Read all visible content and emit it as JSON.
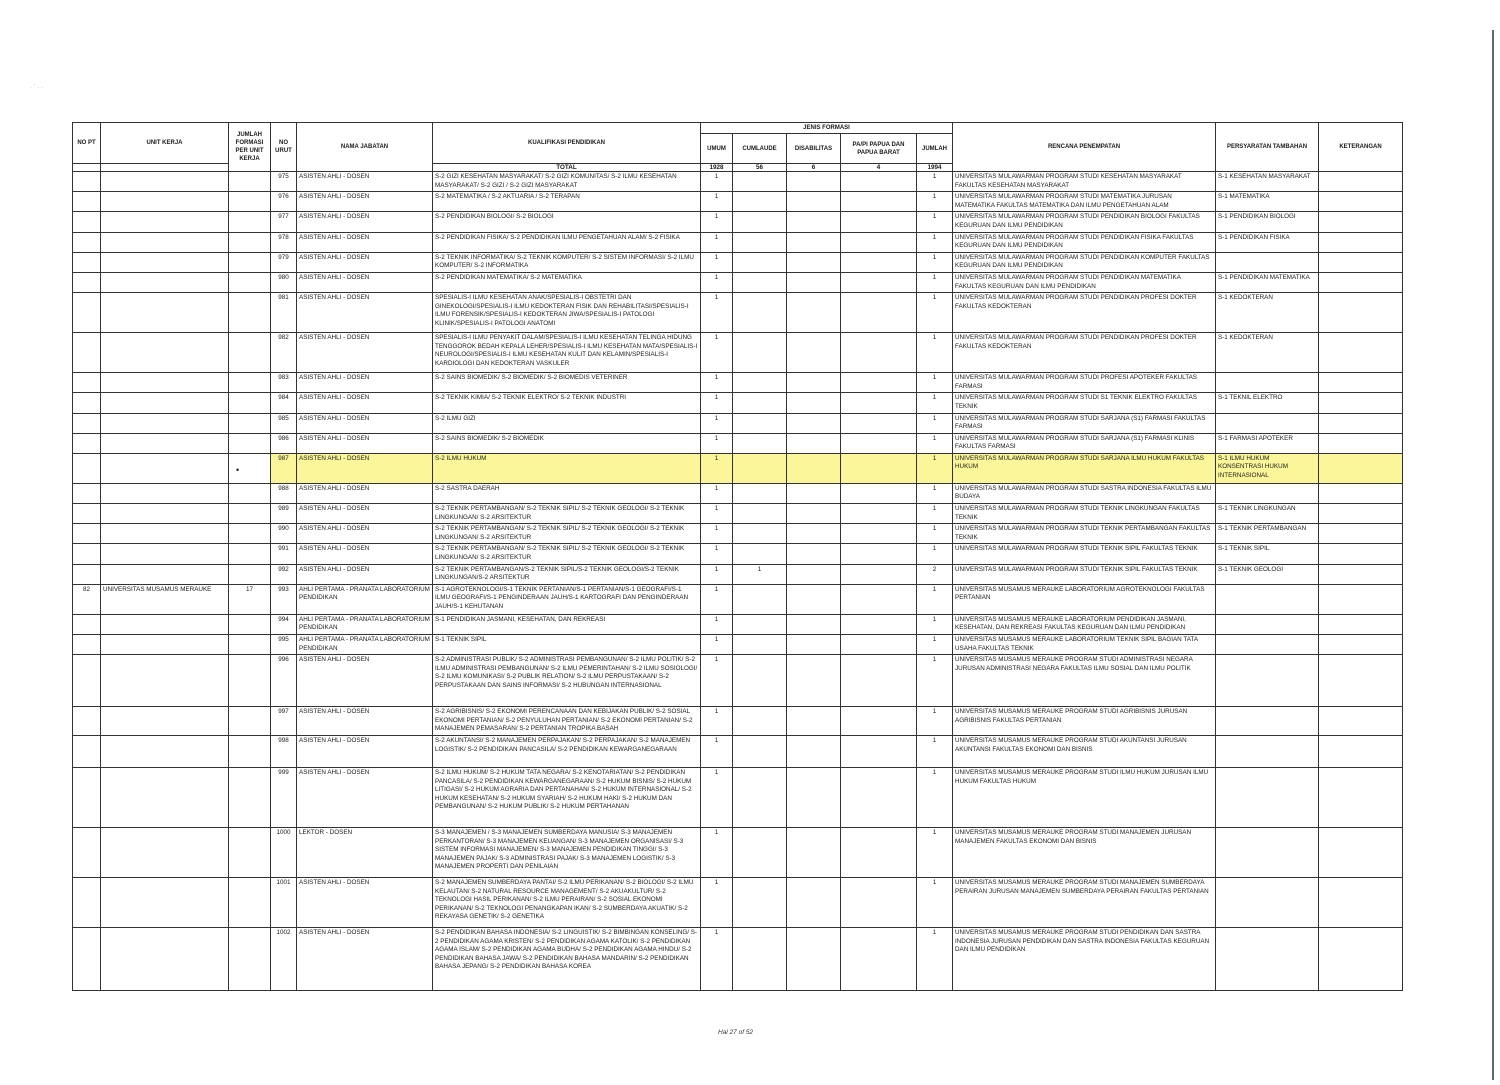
{
  "header": {
    "no_pt": "NO PT",
    "unit_kerja": "UNIT KERJA",
    "jumlah_formasi": "JUMLAH FORMASI PER UNIT KERJA",
    "no_urut": "NO URUT",
    "nama_jabatan": "NAMA JABATAN",
    "kualifikasi": "KUALIFIKASI PENDIDIKAN",
    "jenis_formasi": "JENIS FORMASI",
    "umum": "UMUM",
    "cumlaude": "CUMLAUDE",
    "disabilitas": "DISABILITAS",
    "papua": "PA/PI PAPUA DAN PAPUA BARAT",
    "jumlah": "JUMLAH",
    "rencana": "RENCANA PENEMPATAN",
    "persyaratan": "PERSYARATAN TAMBAHAN",
    "keterangan": "KETERANGAN"
  },
  "totals": {
    "label": "TOTAL",
    "umum": "1928",
    "cumlaude": "56",
    "disabilitas": "6",
    "papua": "4",
    "jumlah": "1994"
  },
  "highlight_color": "#fbf69a",
  "rows": [
    {
      "no_pt": "",
      "unit": "",
      "jf": "",
      "no": "975",
      "jabatan": "ASISTEN AHLI - DOSEN",
      "kualifikasi": "S-2 GIZI KESEHATAN MASYARAKAT/ S-2 GIZI KOMUNITAS/ S-2 ILMU KESEHATAN MASYARAKAT/ S-2 GIZI / S-2 GIZI MASYARAKAT",
      "umum": "1",
      "cum": "",
      "dis": "",
      "pap": "",
      "jml": "1",
      "rencana": "UNIVERSITAS MULAWARMAN PROGRAM STUDI KESEHATAN MASYARAKAT FAKULTAS KESEHATAN MASYARAKAT",
      "syarat": "S-1 KESEHATAN MASYARAKAT",
      "ket": ""
    },
    {
      "no_pt": "",
      "unit": "",
      "jf": "",
      "no": "976",
      "jabatan": "ASISTEN AHLI - DOSEN",
      "kualifikasi": "S-2 MATEMATIKA / S-2 AKTUARIA / S-2 TERAPAN",
      "umum": "1",
      "cum": "",
      "dis": "",
      "pap": "",
      "jml": "1",
      "rencana": "UNIVERSITAS MULAWARMAN PROGRAM STUDI MATEMATIKA JURUSAN MATEMATIKA FAKULTAS MATEMATIKA DAN ILMU PENGETAHUAN ALAM",
      "syarat": "S-1 MATEMATIKA",
      "ket": ""
    },
    {
      "no_pt": "",
      "unit": "",
      "jf": "",
      "no": "977",
      "jabatan": "ASISTEN AHLI - DOSEN",
      "kualifikasi": "S-2 PENDIDIKAN BIOLOGI/ S-2 BIOLOGI",
      "umum": "1",
      "cum": "",
      "dis": "",
      "pap": "",
      "jml": "1",
      "rencana": "UNIVERSITAS MULAWARMAN PROGRAM STUDI PENDIDIKAN BIOLOGI FAKULTAS KEGURUAN DAN ILMU PENDIDIKAN",
      "syarat": "S-1 PENDIDIKAN BIOLOGI",
      "ket": ""
    },
    {
      "no_pt": "",
      "unit": "",
      "jf": "",
      "no": "978",
      "jabatan": "ASISTEN AHLI - DOSEN",
      "kualifikasi": "S-2 PENDIDIKAN FISIKA/ S-2 PENDIDIKAN ILMU PENGETAHUAN ALAM/ S-2 FISIKA",
      "umum": "1",
      "cum": "",
      "dis": "",
      "pap": "",
      "jml": "1",
      "rencana": "UNIVERSITAS MULAWARMAN PROGRAM STUDI PENDIDIKAN FISIKA FAKULTAS KEGURUAN DAN ILMU PENDIDIKAN",
      "syarat": "S-1 PENDIDIKAN FISIKA",
      "ket": ""
    },
    {
      "no_pt": "",
      "unit": "",
      "jf": "",
      "no": "979",
      "jabatan": "ASISTEN AHLI - DOSEN",
      "kualifikasi": "S-2 TEKNIK INFORMATIKA/ S-2 TEKNIK KOMPUTER/ S-2 SISTEM INFORMASI/ S-2 ILMU KOMPUTER/ S-2 INFORMATIKA",
      "umum": "1",
      "cum": "",
      "dis": "",
      "pap": "",
      "jml": "1",
      "rencana": "UNIVERSITAS MULAWARMAN PROGRAM STUDI PENDIDIKAN KOMPUTER FAKULTAS KEGURUAN DAN ILMU PENDIDIKAN",
      "syarat": "",
      "ket": ""
    },
    {
      "no_pt": "",
      "unit": "",
      "jf": "",
      "no": "980",
      "jabatan": "ASISTEN AHLI - DOSEN",
      "kualifikasi": "S-2 PENDIDIKAN MATEMATIKA/ S-2 MATEMATIKA",
      "umum": "1",
      "cum": "",
      "dis": "",
      "pap": "",
      "jml": "1",
      "rencana": "UNIVERSITAS MULAWARMAN PROGRAM STUDI PENDIDIKAN MATEMATIKA FAKULTAS KEGURUAN DAN ILMU PENDIDIKAN",
      "syarat": "S-1 PENDIDIKAN MATEMATIKA",
      "ket": ""
    },
    {
      "no_pt": "",
      "unit": "",
      "jf": "",
      "no": "981",
      "jabatan": "ASISTEN AHLI - DOSEN",
      "kualifikasi": "Spesialis-I ILMU KESEHATAN ANAK/Spesialis-I OBSTETRI DAN GINEKOLOGI/Spesialis-I ILMU KEDOKTERAN FISIK DAN REHABILITASI/Spesialis-I ILMU FORENSIK/Spesialis-I KEDOKTERAN JIWA/Spesialis-I PATOLOGI KLINIK/Spesialis-I PATOLOGI ANATOMI",
      "umum": "1",
      "cum": "",
      "dis": "",
      "pap": "",
      "jml": "1",
      "rencana": "UNIVERSITAS MULAWARMAN PROGRAM STUDI PENDIDIKAN PROFESI DOKTER FAKULTAS KEDOKTERAN",
      "syarat": "S-1 KEDOKTERAN",
      "ket": ""
    },
    {
      "no_pt": "",
      "unit": "",
      "jf": "",
      "no": "982",
      "jabatan": "ASISTEN AHLI - DOSEN",
      "kualifikasi": "Spesialis-I ILMU PENYAKIT DALAM/Spesialis-I ILMU KESEHATAN TELINGA HIDUNG TENGGOROK BEDAH KEPALA LEHER/Spesialis-I ILMU KESEHATAN MATA/Spesialis-I NEUROLOGI/Spesialis-I ILMU KESEHATAN KULIT DAN KELAMIN/Spesialis-I KARDIOLOGI DAN KEDOKTERAN VASKULER",
      "umum": "1",
      "cum": "",
      "dis": "",
      "pap": "",
      "jml": "1",
      "rencana": "UNIVERSITAS MULAWARMAN PROGRAM STUDI PENDIDIKAN PROFESI DOKTER FAKULTAS KEDOKTERAN",
      "syarat": "S-1 KEDOKTERAN",
      "ket": ""
    },
    {
      "no_pt": "",
      "unit": "",
      "jf": "",
      "no": "983",
      "jabatan": "ASISTEN AHLI - DOSEN",
      "kualifikasi": "S-2 SAINS BIOMEDIK/ S-2 BIOMEDIK/ S-2 BIOMEDIS VETERINER",
      "umum": "1",
      "cum": "",
      "dis": "",
      "pap": "",
      "jml": "1",
      "rencana": "UNIVERSITAS MULAWARMAN PROGRAM STUDI PROFESI APOTEKER FAKULTAS FARMASI",
      "syarat": "",
      "ket": ""
    },
    {
      "no_pt": "",
      "unit": "",
      "jf": "",
      "no": "984",
      "jabatan": "ASISTEN AHLI - DOSEN",
      "kualifikasi": "S-2 TEKNIK KIMIA/ S-2 TEKNIK ELEKTRO/ S-2 TEKNIK INDUSTRI",
      "umum": "1",
      "cum": "",
      "dis": "",
      "pap": "",
      "jml": "1",
      "rencana": "UNIVERSITAS MULAWARMAN PROGRAM STUDI S1 TEKNIK ELEKTRO FAKULTAS TEKNIK",
      "syarat": "S-1 TEKNIL ELEKTRO",
      "ket": ""
    },
    {
      "no_pt": "",
      "unit": "",
      "jf": "",
      "no": "985",
      "jabatan": "ASISTEN AHLI - DOSEN",
      "kualifikasi": "S-2 ILMU GIZI",
      "umum": "1",
      "cum": "",
      "dis": "",
      "pap": "",
      "jml": "1",
      "rencana": "UNIVERSITAS MULAWARMAN PROGRAM STUDI SARJANA (S1) FARMASI FAKULTAS FARMASI",
      "syarat": "",
      "ket": ""
    },
    {
      "no_pt": "",
      "unit": "",
      "jf": "",
      "no": "986",
      "jabatan": "ASISTEN AHLI - DOSEN",
      "kualifikasi": "S-2 SAINS BIOMEDIK/ S-2 BIOMEDIK",
      "umum": "1",
      "cum": "",
      "dis": "",
      "pap": "",
      "jml": "1",
      "rencana": "UNIVERSITAS MULAWARMAN PROGRAM STUDI SARJANA (S1) FARMASI KLINIS FAKULTAS FARMASI",
      "syarat": "S-1 FARMASI APOTEKER",
      "ket": ""
    },
    {
      "no_pt": "",
      "unit": "",
      "jf": "",
      "no": "987",
      "jabatan": "ASISTEN AHLI - DOSEN",
      "kualifikasi": "S-2 ILMU HUKUM",
      "umum": "1",
      "cum": "",
      "dis": "",
      "pap": "",
      "jml": "1",
      "rencana": "UNIVERSITAS MULAWARMAN PROGRAM STUDI SARJANA ILMU HUKUM FAKULTAS HUKUM",
      "syarat": "S-1 ILMU HUKUM KONSENTRASI HUKUM INTERNASIONAL",
      "ket": "",
      "highlight": true
    },
    {
      "no_pt": "",
      "unit": "",
      "jf": "",
      "no": "988",
      "jabatan": "ASISTEN AHLI - DOSEN",
      "kualifikasi": "S-2 SASTRA DAERAH",
      "umum": "1",
      "cum": "",
      "dis": "",
      "pap": "",
      "jml": "1",
      "rencana": "UNIVERSITAS MULAWARMAN PROGRAM STUDI SASTRA INDONESIA FAKULTAS ILMU BUDAYA",
      "syarat": "",
      "ket": ""
    },
    {
      "no_pt": "",
      "unit": "",
      "jf": "",
      "no": "989",
      "jabatan": "ASISTEN AHLI - DOSEN",
      "kualifikasi": "S-2 TEKNIK PERTAMBANGAN/ S-2 TEKNIK SIPIL/ S-2 TEKNIK GEOLOGI/ S-2 TEKNIK LINGKUNGAN/ S-2 ARSITEKTUR",
      "umum": "1",
      "cum": "",
      "dis": "",
      "pap": "",
      "jml": "1",
      "rencana": "UNIVERSITAS MULAWARMAN PROGRAM STUDI TEKNIK LINGKUNGAN FAKULTAS TEKNIK",
      "syarat": "S-1 TEKNIK LINGKUNGAN",
      "ket": ""
    },
    {
      "no_pt": "",
      "unit": "",
      "jf": "",
      "no": "990",
      "jabatan": "ASISTEN AHLI - DOSEN",
      "kualifikasi": "S-2 TEKNIK PERTAMBANGAN/ S-2 TEKNIK SIPIL/ S-2 TEKNIK GEOLOGI/ S-2 TEKNIK LINGKUNGAN/ S-2 ARSITEKTUR",
      "umum": "1",
      "cum": "",
      "dis": "",
      "pap": "",
      "jml": "1",
      "rencana": "UNIVERSITAS MULAWARMAN PROGRAM STUDI TEKNIK PERTAMBANGAN FAKULTAS TEKNIK",
      "syarat": "S-1 TEKNIK PERTAMBANGAN",
      "ket": ""
    },
    {
      "no_pt": "",
      "unit": "",
      "jf": "",
      "no": "991",
      "jabatan": "ASISTEN AHLI - DOSEN",
      "kualifikasi": "S-2 TEKNIK PERTAMBANGAN/ S-2 TEKNIK SIPIL/ S-2 TEKNIK GEOLOGI/ S-2 TEKNIK LINGKUNGAN/ S-2 ARSITEKTUR",
      "umum": "1",
      "cum": "",
      "dis": "",
      "pap": "",
      "jml": "1",
      "rencana": "UNIVERSITAS MULAWARMAN PROGRAM STUDI TEKNIK SIPIL FAKULTAS TEKNIK",
      "syarat": "S-1 TEKNIK SIPIL",
      "ket": ""
    },
    {
      "no_pt": "",
      "unit": "",
      "jf": "",
      "no": "992",
      "jabatan": "ASISTEN AHLI - DOSEN",
      "kualifikasi": "S-2 TEKNIK PERTAMBANGAN/S-2 TEKNIK SIPIL/S-2 TEKNIK GEOLOGI/S-2 TEKNIK LINGKUNGAN/S-2 ARSITEKTUR",
      "umum": "1",
      "cum": "1",
      "dis": "",
      "pap": "",
      "jml": "2",
      "rencana": "UNIVERSITAS MULAWARMAN PROGRAM STUDI TEKNIK SIPIL FAKULTAS TEKNIK",
      "syarat": "S-1 TEKNIK GEOLOGI",
      "ket": ""
    },
    {
      "no_pt": "82",
      "unit": "UNIVERSITAS MUSAMUS MERAUKE",
      "jf": "17",
      "no": "993",
      "jabatan": "AHLI PERTAMA - PRANATA LABORATORIUM PENDIDIKAN",
      "kualifikasi": "S-1 AGROTEKNOLOGI/S-1 TEKNIK PERTANIAN/S-1 PERTANIAN/S-1 GEOGRAFI/S-1 ILMU GEOGRAFI/S-1 PENGINDERAAN JAUH/S-1 KARTOGRAFI DAN PENGINDERAAN JAUH/S-1 KEHUTANAN",
      "umum": "1",
      "cum": "",
      "dis": "",
      "pap": "",
      "jml": "1",
      "rencana": "UNIVERSITAS MUSAMUS MERAUKE LABORATORIUM AGROTEKNOLOGI FAKULTAS PERTANIAN",
      "syarat": "",
      "ket": ""
    },
    {
      "no_pt": "",
      "unit": "",
      "jf": "",
      "no": "994",
      "jabatan": "AHLI PERTAMA - PRANATA LABORATORIUM PENDIDIKAN",
      "kualifikasi": "S-1 PENDIDIKAN JASMANI, KESEHATAN, DAN REKREASI",
      "umum": "1",
      "cum": "",
      "dis": "",
      "pap": "",
      "jml": "1",
      "rencana": "UNIVERSITAS MUSAMUS MERAUKE LABORATORIUM PENDIDIKAN JASMANI, KESEHATAN, DAN REKREASI FAKULTAS KEGURUAN DAN ILMU PENDIDIKAN",
      "syarat": "",
      "ket": ""
    },
    {
      "no_pt": "",
      "unit": "",
      "jf": "",
      "no": "995",
      "jabatan": "AHLI PERTAMA - PRANATA LABORATORIUM PENDIDIKAN",
      "kualifikasi": "S-1 TEKNIK SIPIL",
      "umum": "1",
      "cum": "",
      "dis": "",
      "pap": "",
      "jml": "1",
      "rencana": "UNIVERSITAS MUSAMUS MERAUKE LABORATORIUM TEKNIK SIPIL BAGIAN TATA USAHA FAKULTAS TEKNIK",
      "syarat": "",
      "ket": ""
    },
    {
      "no_pt": "",
      "unit": "",
      "jf": "",
      "no": "996",
      "jabatan": "ASISTEN AHLI - DOSEN",
      "kualifikasi": "S-2 ADMINISTRASI PUBLIK/ S-2 ADMINISTRASI PEMBANGUNAN/ S-2 ILMU POLITIK/ S-2 ILMU ADMINISTRASI PEMBANGUNAN/ S-2 ILMU PEMERINTAHAN/ S-2 ILMU SOSIOLOGI/ S-2 ILMU KOMUNIKASI/ S-2 PUBLIK RELATION/ S-2 ILMU PERPUSTAKAAN/ S-2 PERPUSTAKAAN DAN SAINS INFORMASI/ S-2 HUBUNGAN INTERNASIONAL",
      "umum": "1",
      "cum": "",
      "dis": "",
      "pap": "",
      "jml": "1",
      "rencana": "UNIVERSITAS MUSAMUS MERAUKE PROGRAM STUDI ADMINISTRASI NEGARA JURUSAN ADMINISTRASI NEGARA FAKULTAS ILMU SOSIAL DAN ILMU POLITIK",
      "syarat": "",
      "ket": ""
    },
    {
      "no_pt": "",
      "unit": "",
      "jf": "",
      "no": "997",
      "jabatan": "ASISTEN AHLI - DOSEN",
      "kualifikasi": "S-2 AGRIBISNIS/ S-2 EKONOMI PERENCANAAN DAN KEBIJAKAN PUBLIK/ S-2 SOSIAL EKONOMI PERTANIAN/ S-2 PENYULUHAN PERTANIAN/ S-2 EKONOMI PERTANIAN/ S-2 MANAJEMEN PEMASARAN/ S-2 PERTANIAN TROPIKA BASAH",
      "umum": "1",
      "cum": "",
      "dis": "",
      "pap": "",
      "jml": "1",
      "rencana": "UNIVERSITAS MUSAMUS MERAUKE PROGRAM STUDI AGRIBISNIS JURUSAN AGRIBISNIS FAKULTAS PERTANIAN",
      "syarat": "",
      "ket": ""
    },
    {
      "no_pt": "",
      "unit": "",
      "jf": "",
      "no": "998",
      "jabatan": "ASISTEN AHLI - DOSEN",
      "kualifikasi": "S-2 AKUNTANSI/ S-2 MANAJEMEN PERPAJAKAN/ S-2 PERPAJAKAN/ S-2 MANAJEMEN LOGISTIK/ S-2 PENDIDIKAN PANCASILA/ S-2 PENDIDIKAN KEWARGANEGARAAN",
      "umum": "1",
      "cum": "",
      "dis": "",
      "pap": "",
      "jml": "1",
      "rencana": "UNIVERSITAS MUSAMUS MERAUKE PROGRAM STUDI AKUNTANSI JURUSAN AKUNTANSI FAKULTAS EKONOMI DAN BISNIS",
      "syarat": "",
      "ket": ""
    },
    {
      "no_pt": "",
      "unit": "",
      "jf": "",
      "no": "999",
      "jabatan": "ASISTEN AHLI - DOSEN",
      "kualifikasi": "S-2 ILMU HUKUM/ S-2 HUKUM TATA NEGARA/ S-2 KENOTARIATAN/ S-2 PENDIDIKAN PANCASILA/ S-2 PENDIDIKAN KEWARGANEGARAAN/ S-2 HUKUM BISNIS/ S-2 HUKUM LITIGASI/ S-2 HUKUM AGRARIA DAN PERTANAHAN/ S-2 HUKUM INTERNASIONAL/ S-2 HUKUM KESEHATAN/ S-2 HUKUM SYARIAH/ S-2 HUKUM HAKI/ S-2 HUKUM DAN PEMBANGUNAN/ S-2 HUKUM PUBLIK/ S-2 HUKUM PERTAHANAN",
      "umum": "1",
      "cum": "",
      "dis": "",
      "pap": "",
      "jml": "1",
      "rencana": "UNIVERSITAS MUSAMUS MERAUKE PROGRAM STUDI ILMU HUKUM JURUSAN ILMU HUKUM FAKULTAS HUKUM",
      "syarat": "",
      "ket": ""
    },
    {
      "no_pt": "",
      "unit": "",
      "jf": "",
      "no": "1000",
      "jabatan": "LEKTOR - DOSEN",
      "kualifikasi": "S-3 MANAJEMEN / S-3 MANAJEMEN SUMBERDAYA MANUSIA/ S-3 MANAJEMEN PERKANTORAN/ S-3 MANAJEMEN KEUANGAN/ S-3 MANAJEMEN ORGANISASI/ S-3 SISTEM INFORMASI MANAJEMEN/ S-3 MANAJEMEN PENDIDIKAN TINGGI/ S-3 MANAJEMEN PAJAK/ S-3 ADMINISTRASI PAJAK/ S-3 MANAJEMEN LOGISTIK/ S-3 MANAJEMEN PROPERTI DAN PENILAIAN",
      "umum": "1",
      "cum": "",
      "dis": "",
      "pap": "",
      "jml": "1",
      "rencana": "UNIVERSITAS MUSAMUS MERAUKE PROGRAM STUDI MANAJEMEN JURUSAN MANAJEMEN FAKULTAS EKONOMI DAN BISNIS",
      "syarat": "",
      "ket": ""
    },
    {
      "no_pt": "",
      "unit": "",
      "jf": "",
      "no": "1001",
      "jabatan": "ASISTEN AHLI - DOSEN",
      "kualifikasi": "S-2 MANAJEMEN SUMBERDAYA PANTAI/ S-2 ILMU PERIKANAN/ S-2 BIOLOGI/ S-2 ILMU KELAUTAN/ S-2 NATURAL RESOURCE MANAGEMENT/ S-2 AKUAKULTUR/ S-2 TEKNOLOGI HASIL PERIKANAN/ S-2 ILMU PERAIRAN/ S-2 SOSIAL EKONOMI PERIKANAN/ S-2 TEKNOLOGI PENANGKAPAN IKAN/ S-2 SUMBERDAYA AKUATIK/ S-2 REKAYASA GENETIK/ S-2 GENETIKA",
      "umum": "1",
      "cum": "",
      "dis": "",
      "pap": "",
      "jml": "1",
      "rencana": "UNIVERSITAS MUSAMUS MERAUKE PROGRAM STUDI MANAJEMEN SUMBERDAYA PERAIRAN JURUSAN MANAJEMEN SUMBERDAYA PERAIRAN FAKULTAS PERTANIAN",
      "syarat": "",
      "ket": ""
    },
    {
      "no_pt": "",
      "unit": "",
      "jf": "",
      "no": "1002",
      "jabatan": "ASISTEN AHLI - DOSEN",
      "kualifikasi": "S-2 PENDIDIKAN BAHASA INDONESIA/ S-2 LINGUISTIK/ S-2 BIMBINGAN KONSELING/ S-2 PENDIDIKAN AGAMA KRISTEN/ S-2 PENDIDIKAN AGAMA KATOLIK/ S-2 PENDIDIKAN AGAMA ISLAM/ S-2 PENDIDIKAN AGAMA BUDHA/ S-2 PENDIDIKAN AGAMA HINDU/ S-2 PENDIDIKAN BAHASA JAWA/ S-2 PENDIDIKAN BAHASA MANDARIN/ S-2 PENDIDIKAN BAHASA JEPANG/ S-2 PENDIDIKAN BAHASA KOREA",
      "umum": "1",
      "cum": "",
      "dis": "",
      "pap": "",
      "jml": "1",
      "rencana": "UNIVERSITAS MUSAMUS MERAUKE PROGRAM STUDI PENDIDIKAN DAN SASTRA INDONESIA JURUSAN PENDIDIKAN DAN SASTRA INDONESIA FAKULTAS KEGURUAN DAN ILMU PENDIDIKAN",
      "syarat": "",
      "ket": ""
    }
  ],
  "footer": {
    "page": "Hal 27 of 52"
  }
}
